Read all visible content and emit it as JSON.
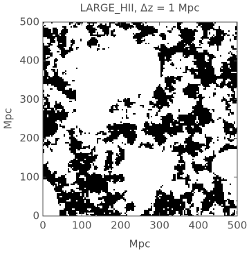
{
  "chart_data": {
    "type": "heatmap",
    "title": "LARGE_HII, Δz = 1 Mpc",
    "xlabel": "Mpc",
    "ylabel": "Mpc",
    "xlim": [
      0,
      500
    ],
    "ylim": [
      0,
      500
    ],
    "xticks": [
      0,
      100,
      200,
      300,
      400,
      500
    ],
    "yticks": [
      0,
      100,
      200,
      300,
      400,
      500
    ]
  }
}
